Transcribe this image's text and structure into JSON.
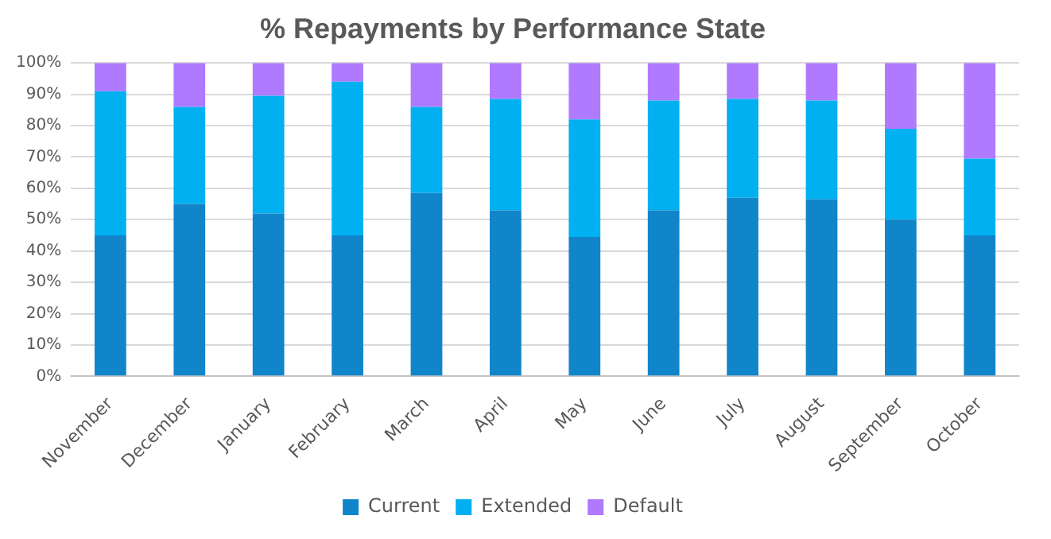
{
  "chart_data": {
    "type": "bar",
    "title": "% Repayments by Performance State",
    "stacked": true,
    "categories": [
      "November",
      "December",
      "January",
      "February",
      "March",
      "April",
      "May",
      "June",
      "July",
      "August",
      "September",
      "October"
    ],
    "series": [
      {
        "name": "Current",
        "color": "#1185ca",
        "values": [
          45,
          55,
          52,
          45,
          58.5,
          53,
          44.5,
          53,
          57,
          56.5,
          50,
          45
        ]
      },
      {
        "name": "Extended",
        "color": "#00b0f0",
        "values": [
          46,
          31,
          37.5,
          49,
          27.5,
          35.5,
          37.5,
          35,
          31.5,
          31.5,
          29,
          24.5
        ]
      },
      {
        "name": "Default",
        "color": "#b07aff",
        "values": [
          9,
          14,
          10.5,
          6,
          14,
          11.5,
          18,
          12,
          11.5,
          12,
          21,
          30.5
        ]
      }
    ],
    "ylim": [
      0,
      100
    ],
    "yticks": [
      {
        "value": 0,
        "label": "0%"
      },
      {
        "value": 10,
        "label": "10%"
      },
      {
        "value": 20,
        "label": "20%"
      },
      {
        "value": 30,
        "label": "30%"
      },
      {
        "value": 40,
        "label": "40%"
      },
      {
        "value": 50,
        "label": "50%"
      },
      {
        "value": 60,
        "label": "60%"
      },
      {
        "value": 70,
        "label": "70%"
      },
      {
        "value": 80,
        "label": "80%"
      },
      {
        "value": 90,
        "label": "90%"
      },
      {
        "value": 100,
        "label": "100%"
      }
    ],
    "grid": "y",
    "legend": "bottom"
  }
}
